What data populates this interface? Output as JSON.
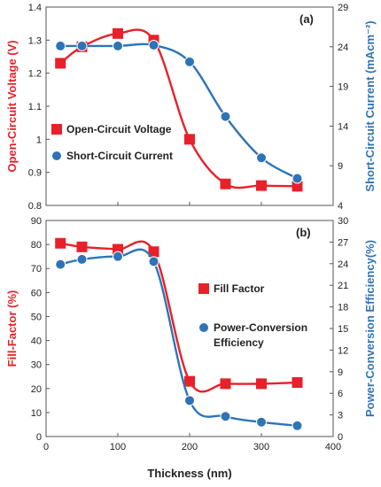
{
  "chart_data": [
    {
      "type": "line",
      "panel_label": "(a)",
      "xlim": [
        0,
        400
      ],
      "x_ticks": [],
      "ylabel_left": "Open-Circuit Voltage (V)",
      "ylabel_right": "Short-Circuit Current (mAcm⁻²)",
      "ylim_left": [
        0.8,
        1.4
      ],
      "ylim_right": [
        4,
        29
      ],
      "yticks_left": [
        "0.8",
        "0.9",
        "1",
        "1.1",
        "1.2",
        "1.3",
        "1.4"
      ],
      "yticks_right": [
        "4",
        "9",
        "14",
        "19",
        "24",
        "29"
      ],
      "grid": false,
      "legend_position": "center-left",
      "series": [
        {
          "name": "Open-Circuit Voltage",
          "axis": "left",
          "color": "#e8202a",
          "marker": "square",
          "x": [
            20,
            50,
            100,
            150,
            200,
            250,
            300,
            350
          ],
          "y": [
            1.23,
            1.28,
            1.32,
            1.3,
            1.0,
            0.865,
            0.86,
            0.858
          ]
        },
        {
          "name": "Short-Circuit Current",
          "axis": "right",
          "color": "#2e74b5",
          "marker": "circle",
          "x": [
            20,
            50,
            100,
            150,
            200,
            250,
            300,
            350
          ],
          "y": [
            24.1,
            24.1,
            24.1,
            24.2,
            22.1,
            15.2,
            10.0,
            7.4
          ]
        }
      ]
    },
    {
      "type": "line",
      "panel_label": "(b)",
      "xlabel": "Thickness (nm)",
      "xlim": [
        0,
        400
      ],
      "x_ticks": [
        "0",
        "100",
        "200",
        "300",
        "400"
      ],
      "ylabel_left": "Fill-Factor (%)",
      "ylabel_right": "Power-Conversion Efficiency(%)",
      "ylim_left": [
        0,
        90
      ],
      "ylim_right": [
        0,
        30
      ],
      "yticks_left": [
        "0",
        "10",
        "20",
        "30",
        "40",
        "50",
        "60",
        "70",
        "80",
        "90"
      ],
      "yticks_right": [
        "0",
        "3",
        "6",
        "9",
        "12",
        "15",
        "18",
        "21",
        "24",
        "27",
        "30"
      ],
      "grid": false,
      "legend_position": "center-right",
      "series": [
        {
          "name": "Fill Factor",
          "axis": "left",
          "color": "#e8202a",
          "marker": "square",
          "x": [
            20,
            50,
            100,
            150,
            200,
            250,
            300,
            350
          ],
          "y": [
            80.5,
            79,
            78,
            77,
            23,
            22,
            22,
            22.5
          ]
        },
        {
          "name": "Power-Conversion Efficiency",
          "legend_lines": [
            "Power-Conversion",
            "Efficiency"
          ],
          "axis": "right",
          "color": "#2e74b5",
          "marker": "circle",
          "x": [
            20,
            50,
            100,
            150,
            200,
            250,
            300,
            350
          ],
          "y": [
            23.9,
            24.6,
            25.0,
            24.3,
            5.0,
            2.8,
            2.0,
            1.5
          ]
        }
      ]
    }
  ]
}
